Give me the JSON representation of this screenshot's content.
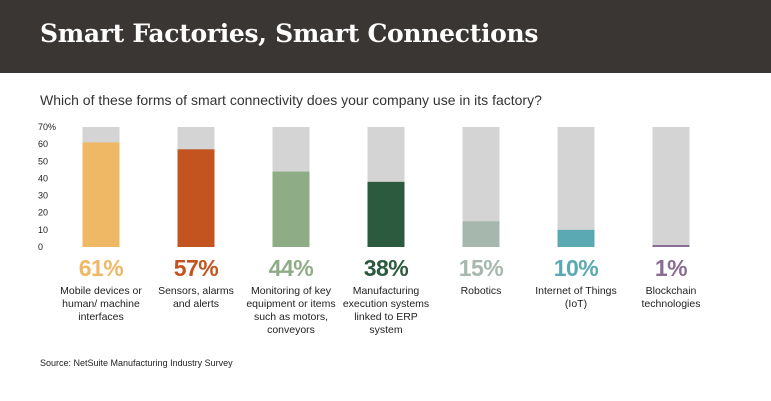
{
  "header": {
    "title": "Smart Factories, Smart Connections"
  },
  "chart_data": {
    "type": "bar",
    "title": "Which of these forms of smart connectivity does your company use in its factory?",
    "ylim": [
      0,
      70
    ],
    "y_ticks": [
      "70%",
      "60",
      "50",
      "40",
      "30",
      "20",
      "10",
      "0"
    ],
    "categories": [
      "Mobile devices or human/ machine interfaces",
      "Sensors, alarms and alerts",
      "Monitoring of key equipment or items such as motors, conveyors",
      "Manufacturing execution systems linked to ERP system",
      "Robotics",
      "Internet of Things (IoT)",
      "Blockchain technologies"
    ],
    "values": [
      61,
      57,
      44,
      38,
      15,
      10,
      1
    ],
    "value_labels": [
      "61%",
      "57%",
      "44%",
      "38%",
      "15%",
      "10%",
      "1%"
    ],
    "colors": [
      "#efb865",
      "#c4541f",
      "#8ead87",
      "#2b5a3e",
      "#a6b8ae",
      "#5aa9b3",
      "#8a6d92"
    ],
    "track_color": "#d4d4d4",
    "grid": false,
    "legend": "none"
  },
  "source": "Source: NetSuite Manufacturing Industry Survey"
}
